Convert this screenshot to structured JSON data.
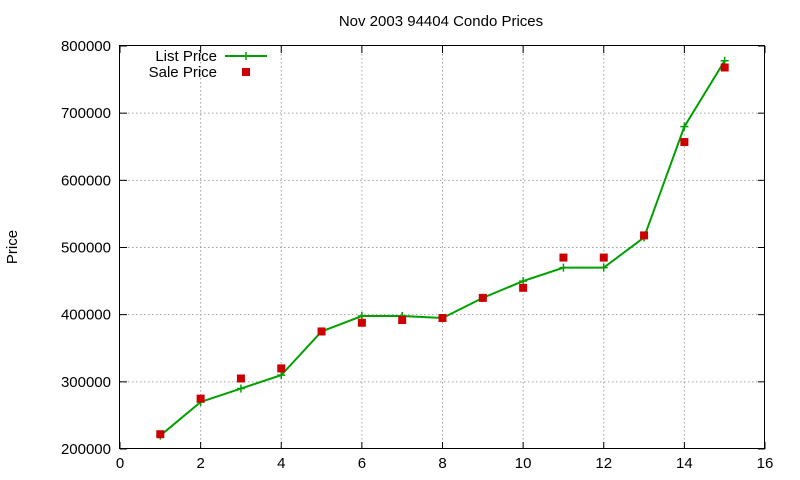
{
  "chart_data": {
    "type": "line",
    "title": "Nov 2003 94404 Condo Prices",
    "xlabel": "",
    "ylabel": "Price",
    "xlim": [
      0,
      16
    ],
    "ylim": [
      200000,
      800000
    ],
    "xticks": [
      0,
      2,
      4,
      6,
      8,
      10,
      12,
      14,
      16
    ],
    "yticks": [
      200000,
      300000,
      400000,
      500000,
      600000,
      700000,
      800000
    ],
    "grid": true,
    "legend_position": "top-left",
    "series": [
      {
        "name": "List Price",
        "style": "line+cross",
        "color": "#00a000",
        "x": [
          1,
          2,
          3,
          4,
          5,
          6,
          7,
          8,
          9,
          10,
          11,
          12,
          13,
          14,
          15
        ],
        "y": [
          220000,
          270000,
          290000,
          310000,
          375000,
          398000,
          398000,
          395000,
          425000,
          450000,
          470000,
          470000,
          515000,
          680000,
          778000
        ]
      },
      {
        "name": "Sale Price",
        "style": "square",
        "color": "#cc0000",
        "x": [
          1,
          2,
          3,
          4,
          5,
          6,
          7,
          8,
          9,
          10,
          11,
          12,
          13,
          14,
          15
        ],
        "y": [
          222000,
          275000,
          305000,
          320000,
          375000,
          388000,
          392000,
          395000,
          425000,
          440000,
          485000,
          485000,
          518000,
          657000,
          768000
        ]
      }
    ]
  }
}
